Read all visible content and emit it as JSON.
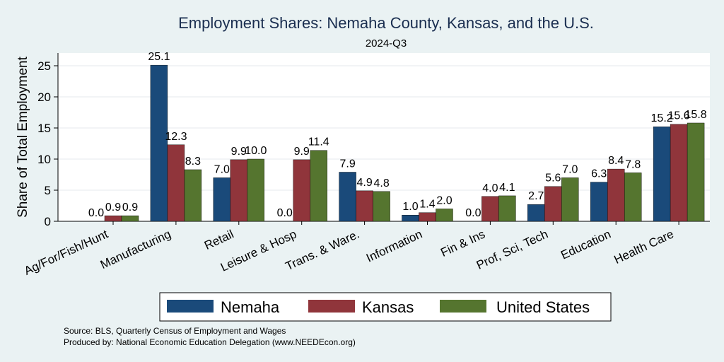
{
  "chart_data": {
    "type": "bar",
    "title": "Employment Shares: Nemaha County, Kansas, and the U.S.",
    "subtitle": "2024-Q3",
    "ylabel": "Share of Total Employment",
    "xlabel": "",
    "ylim": [
      0,
      27
    ],
    "yticks": [
      0,
      5,
      10,
      15,
      20,
      25
    ],
    "grid": true,
    "legend_position": "bottom",
    "categories": [
      "Ag/For/Fish/Hunt",
      "Manufacturing",
      "Retail",
      "Leisure & Hosp",
      "Trans. & Ware.",
      "Information",
      "Fin & Ins",
      "Prof, Sci, Tech",
      "Education",
      "Health Care"
    ],
    "series": [
      {
        "name": "Nemaha",
        "color": "#1a4a7a",
        "values": [
          0.0,
          25.1,
          7.0,
          0.0,
          7.9,
          1.0,
          0.0,
          2.7,
          6.3,
          15.2
        ],
        "labels": [
          "0.0",
          "25.1",
          "7.0",
          "0.0",
          "7.9",
          "1.0",
          "0.0",
          "2.7",
          "6.3",
          "15.2"
        ]
      },
      {
        "name": "Kansas",
        "color": "#90353b",
        "values": [
          0.9,
          12.3,
          9.9,
          9.9,
          4.9,
          1.4,
          4.0,
          5.6,
          8.4,
          15.6
        ],
        "labels": [
          "0.9",
          "12.3",
          "9.9",
          "9.9",
          "4.9",
          "1.4",
          "4.0",
          "5.6",
          "8.4",
          "15.6"
        ]
      },
      {
        "name": "United States",
        "color": "#55752f",
        "values": [
          0.9,
          8.3,
          10.0,
          11.4,
          4.8,
          2.0,
          4.1,
          7.0,
          7.8,
          15.8
        ],
        "labels": [
          "0.9",
          "8.3",
          "10.0",
          "11.4",
          "4.8",
          "2.0",
          "4.1",
          "7.0",
          "7.8",
          "15.8"
        ]
      }
    ],
    "notes": [
      "Source: BLS, Quarterly Census of Employment and Wages",
      "Produced by: National Economic Education Delegation (www.NEEDEcon.org)"
    ]
  }
}
